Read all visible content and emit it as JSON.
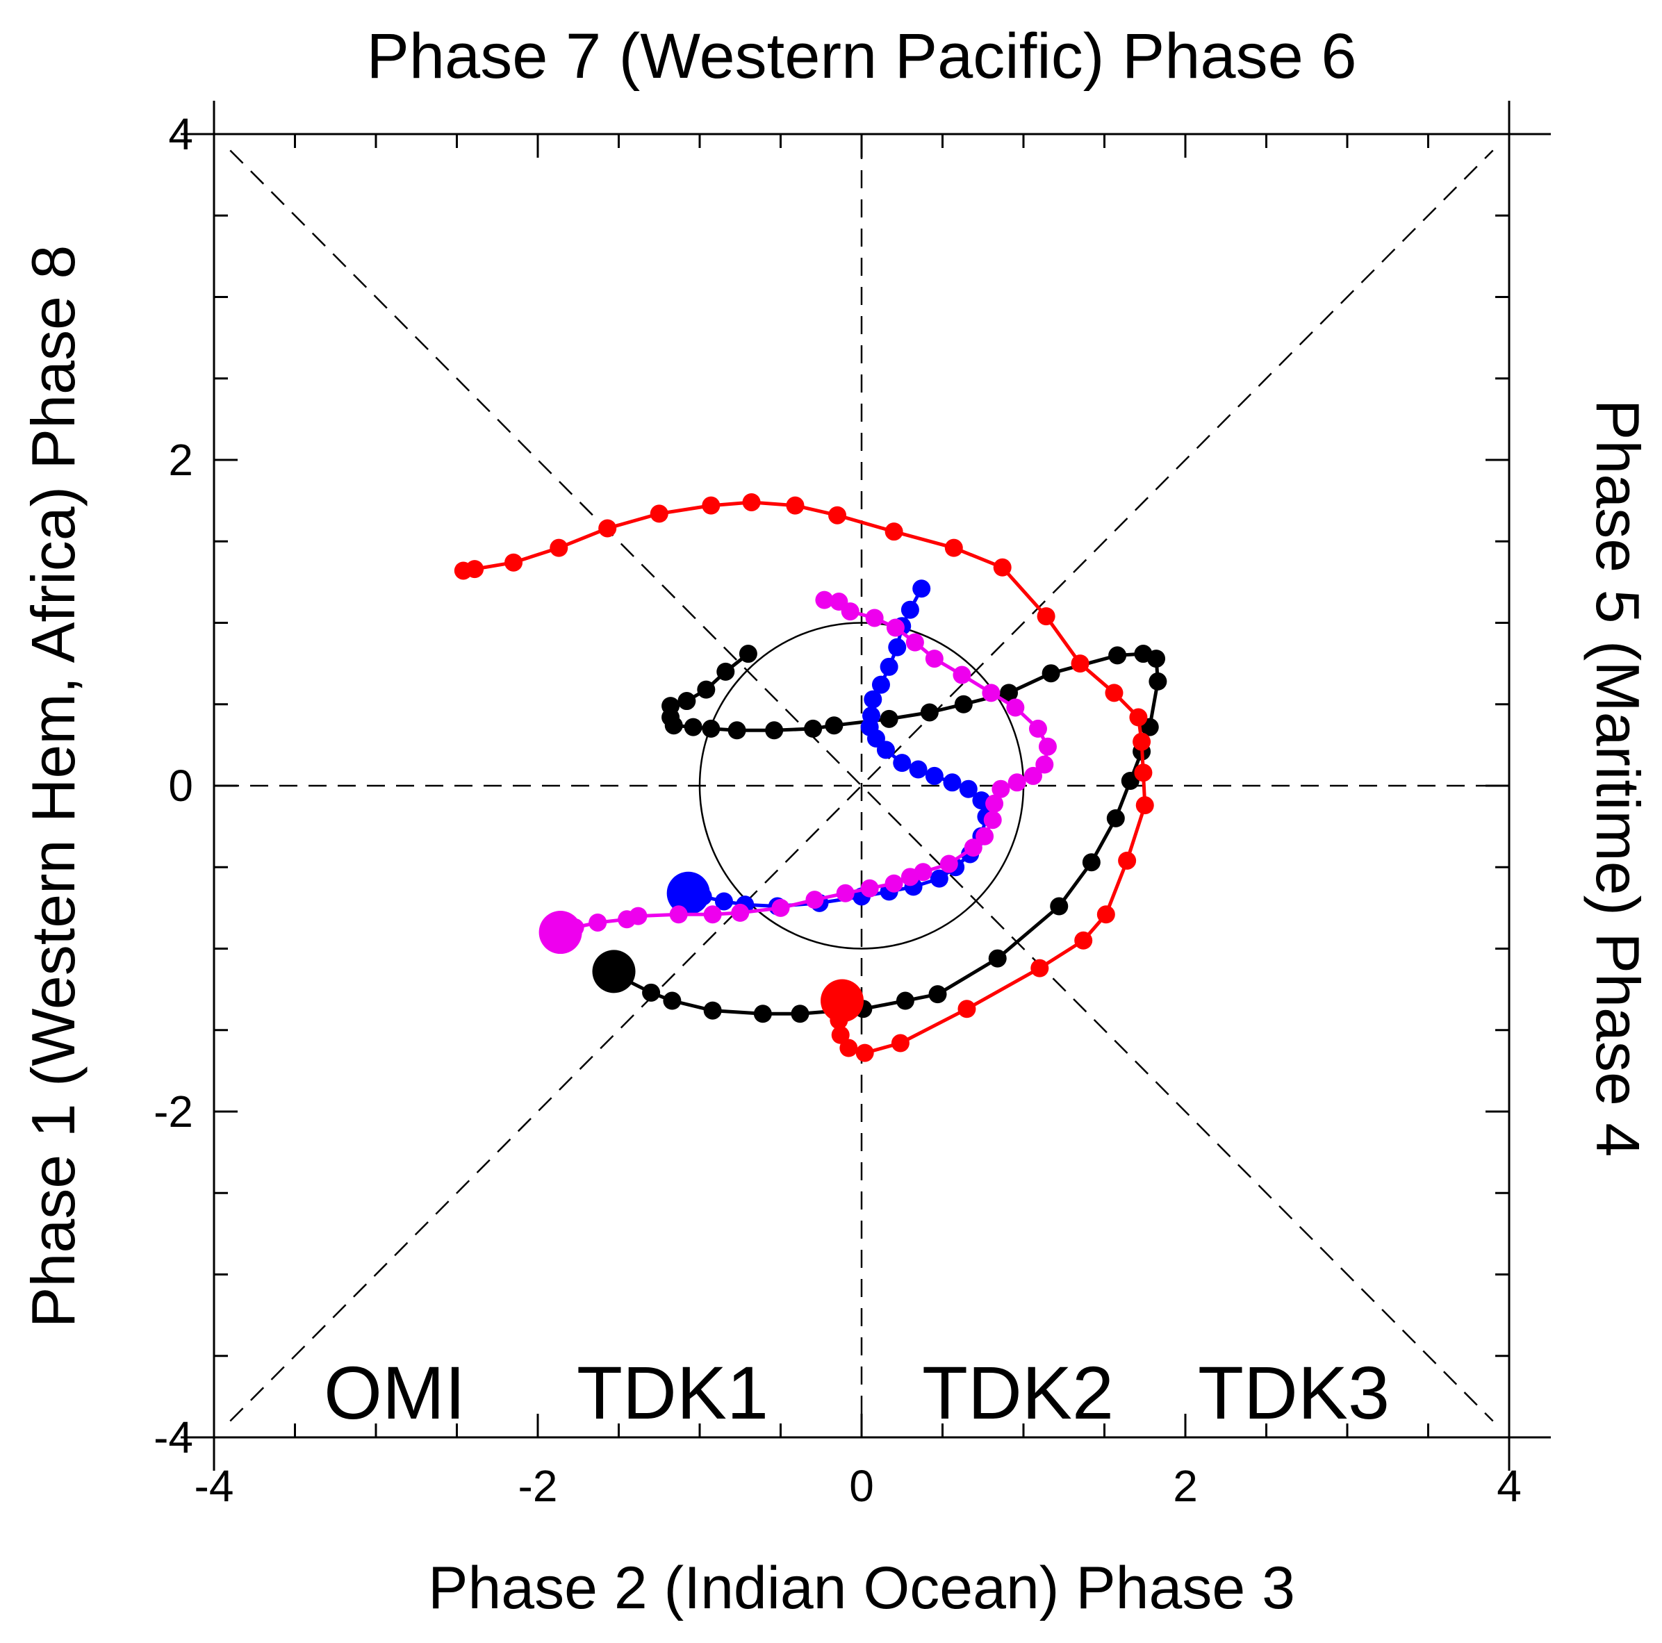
{
  "chart_data": {
    "type": "scatter",
    "title_top": "Phase 7 (Western Pacific) Phase 6",
    "xlabel": "Phase 2 (Indian Ocean) Phase 3",
    "ylabel_left": "Phase 1 (Western Hem, Africa) Phase 8",
    "ylabel_right": "Phase 5 (Maritime) Phase 4",
    "xlim": [
      -4,
      4
    ],
    "ylim": [
      -4,
      4
    ],
    "x_ticks": [
      {
        "value": -4,
        "label": "-4"
      },
      {
        "value": -2,
        "label": "-2"
      },
      {
        "value": 0,
        "label": "0"
      },
      {
        "value": 2,
        "label": "2"
      },
      {
        "value": 4,
        "label": "4"
      }
    ],
    "y_ticks": [
      {
        "value": 4,
        "label": "4"
      },
      {
        "value": 2,
        "label": "2"
      },
      {
        "value": 0,
        "label": "0"
      },
      {
        "value": -2,
        "label": "-2"
      },
      {
        "value": -4,
        "label": "-4"
      }
    ],
    "minor_step": 0.5,
    "reference_circle_radius": 1,
    "series": [
      {
        "name": "OMI",
        "color": "#000000",
        "points": [
          [
            -0.7,
            0.81
          ],
          [
            -0.84,
            0.7
          ],
          [
            -0.96,
            0.59
          ],
          [
            -1.08,
            0.52
          ],
          [
            -1.18,
            0.49
          ],
          [
            -1.18,
            0.42
          ],
          [
            -1.16,
            0.37
          ],
          [
            -1.04,
            0.36
          ],
          [
            -0.93,
            0.35
          ],
          [
            -0.77,
            0.34
          ],
          [
            -0.54,
            0.34
          ],
          [
            -0.3,
            0.35
          ],
          [
            -0.17,
            0.37
          ],
          [
            0.17,
            0.41
          ],
          [
            0.42,
            0.45
          ],
          [
            0.63,
            0.5
          ],
          [
            0.91,
            0.57
          ],
          [
            1.17,
            0.69
          ],
          [
            1.58,
            0.8
          ],
          [
            1.74,
            0.81
          ],
          [
            1.82,
            0.78
          ],
          [
            1.83,
            0.64
          ],
          [
            1.78,
            0.36
          ],
          [
            1.73,
            0.21
          ],
          [
            1.66,
            0.03
          ],
          [
            1.57,
            -0.2
          ],
          [
            1.42,
            -0.47
          ],
          [
            1.22,
            -0.74
          ],
          [
            0.84,
            -1.06
          ],
          [
            0.47,
            -1.28
          ],
          [
            0.27,
            -1.32
          ],
          [
            0.01,
            -1.37
          ],
          [
            -0.13,
            -1.38
          ],
          [
            -0.38,
            -1.4
          ],
          [
            -0.61,
            -1.4
          ],
          [
            -0.92,
            -1.38
          ],
          [
            -1.17,
            -1.32
          ],
          [
            -1.3,
            -1.27
          ],
          [
            -1.48,
            -1.18
          ],
          [
            -1.53,
            -1.14
          ]
        ]
      },
      {
        "name": "TDK1",
        "color": "#ff0000",
        "points": [
          [
            -2.46,
            1.32
          ],
          [
            -2.39,
            1.33
          ],
          [
            -2.15,
            1.37
          ],
          [
            -1.87,
            1.46
          ],
          [
            -1.57,
            1.58
          ],
          [
            -1.25,
            1.67
          ],
          [
            -0.93,
            1.72
          ],
          [
            -0.68,
            1.74
          ],
          [
            -0.41,
            1.72
          ],
          [
            -0.15,
            1.66
          ],
          [
            0.2,
            1.56
          ],
          [
            0.57,
            1.46
          ],
          [
            0.87,
            1.34
          ],
          [
            1.14,
            1.04
          ],
          [
            1.35,
            0.75
          ],
          [
            1.56,
            0.57
          ],
          [
            1.71,
            0.42
          ],
          [
            1.73,
            0.27
          ],
          [
            1.74,
            0.08
          ],
          [
            1.75,
            -0.12
          ],
          [
            1.64,
            -0.46
          ],
          [
            1.51,
            -0.79
          ],
          [
            1.37,
            -0.95
          ],
          [
            1.1,
            -1.12
          ],
          [
            0.65,
            -1.37
          ],
          [
            0.24,
            -1.58
          ],
          [
            0.02,
            -1.64
          ],
          [
            -0.08,
            -1.61
          ],
          [
            -0.13,
            -1.53
          ],
          [
            -0.14,
            -1.44
          ],
          [
            -0.12,
            -1.32
          ]
        ]
      },
      {
        "name": "TDK2",
        "color": "#0000ff",
        "points": [
          [
            0.37,
            1.21
          ],
          [
            0.3,
            1.08
          ],
          [
            0.25,
            0.98
          ],
          [
            0.22,
            0.85
          ],
          [
            0.17,
            0.73
          ],
          [
            0.12,
            0.62
          ],
          [
            0.07,
            0.53
          ],
          [
            0.06,
            0.43
          ],
          [
            0.05,
            0.36
          ],
          [
            0.09,
            0.29
          ],
          [
            0.15,
            0.22
          ],
          [
            0.25,
            0.14
          ],
          [
            0.35,
            0.1
          ],
          [
            0.45,
            0.06
          ],
          [
            0.56,
            0.02
          ],
          [
            0.66,
            -0.02
          ],
          [
            0.74,
            -0.09
          ],
          [
            0.77,
            -0.19
          ],
          [
            0.74,
            -0.31
          ],
          [
            0.67,
            -0.42
          ],
          [
            0.58,
            -0.5
          ],
          [
            0.48,
            -0.57
          ],
          [
            0.32,
            -0.62
          ],
          [
            0.17,
            -0.65
          ],
          [
            0.0,
            -0.68
          ],
          [
            -0.26,
            -0.72
          ],
          [
            -0.52,
            -0.74
          ],
          [
            -0.72,
            -0.73
          ],
          [
            -0.85,
            -0.71
          ],
          [
            -0.98,
            -0.68
          ],
          [
            -1.07,
            -0.66
          ]
        ]
      },
      {
        "name": "TDK3",
        "color": "#ee00ee",
        "points": [
          [
            -0.23,
            1.14
          ],
          [
            -0.14,
            1.13
          ],
          [
            -0.07,
            1.07
          ],
          [
            0.08,
            1.03
          ],
          [
            0.21,
            0.97
          ],
          [
            0.33,
            0.88
          ],
          [
            0.45,
            0.78
          ],
          [
            0.62,
            0.68
          ],
          [
            0.8,
            0.57
          ],
          [
            0.95,
            0.48
          ],
          [
            1.09,
            0.35
          ],
          [
            1.15,
            0.24
          ],
          [
            1.13,
            0.13
          ],
          [
            1.06,
            0.06
          ],
          [
            0.96,
            0.02
          ],
          [
            0.86,
            -0.02
          ],
          [
            0.82,
            -0.11
          ],
          [
            0.81,
            -0.21
          ],
          [
            0.76,
            -0.31
          ],
          [
            0.69,
            -0.38
          ],
          [
            0.54,
            -0.48
          ],
          [
            0.38,
            -0.53
          ],
          [
            0.3,
            -0.56
          ],
          [
            0.2,
            -0.6
          ],
          [
            0.05,
            -0.63
          ],
          [
            -0.1,
            -0.66
          ],
          [
            -0.29,
            -0.7
          ],
          [
            -0.5,
            -0.75
          ],
          [
            -0.75,
            -0.78
          ],
          [
            -0.92,
            -0.79
          ],
          [
            -1.13,
            -0.79
          ],
          [
            -1.38,
            -0.8
          ],
          [
            -1.45,
            -0.82
          ],
          [
            -1.63,
            -0.84
          ],
          [
            -1.77,
            -0.87
          ],
          [
            -1.86,
            -0.9
          ],
          [
            -1.86,
            -0.9
          ]
        ]
      }
    ],
    "legend": [
      {
        "name": "OMI",
        "color": "#000000"
      },
      {
        "name": "TDK1",
        "color": "#ff0000"
      },
      {
        "name": "TDK2",
        "color": "#0000ff"
      },
      {
        "name": "TDK3",
        "color": "#ee00ee"
      }
    ]
  }
}
